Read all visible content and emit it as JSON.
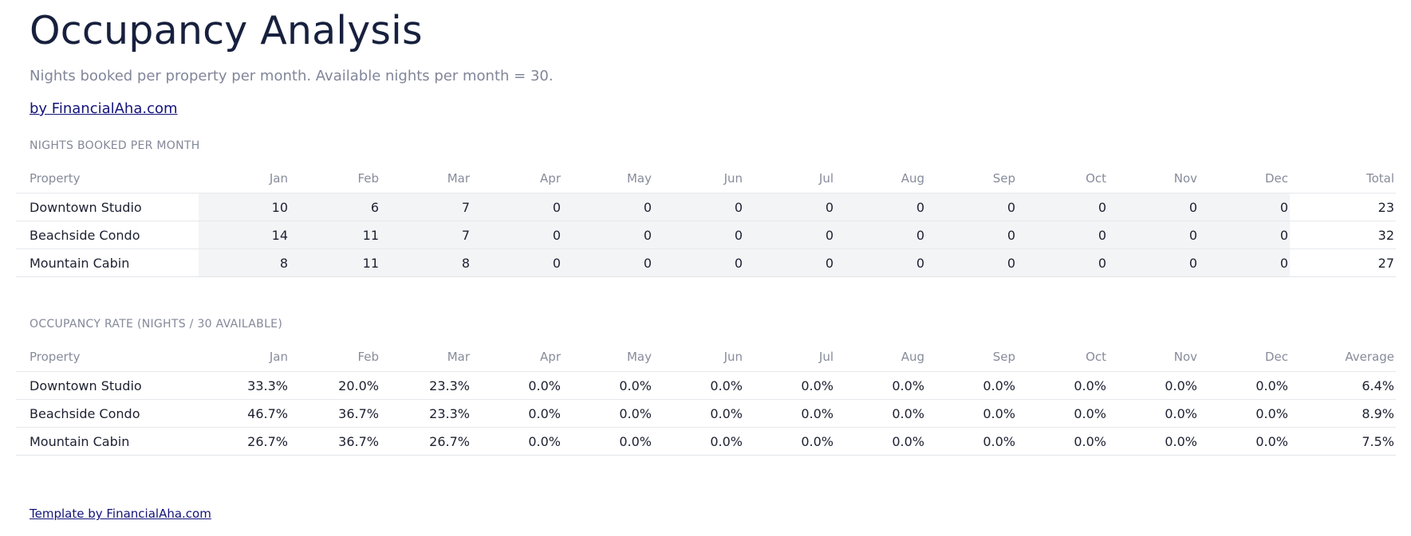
{
  "header": {
    "title": "Occupancy Analysis",
    "subtitle": "Nights booked per property per month. Available nights per month = 30.",
    "byline": "by FinancialAha.com"
  },
  "nights_table": {
    "label": "NIGHTS BOOKED PER MONTH",
    "columns": [
      "Property",
      "Jan",
      "Feb",
      "Mar",
      "Apr",
      "May",
      "Jun",
      "Jul",
      "Aug",
      "Sep",
      "Oct",
      "Nov",
      "Dec",
      "Total"
    ],
    "rows": [
      [
        "Downtown Studio",
        "10",
        "6",
        "7",
        "0",
        "0",
        "0",
        "0",
        "0",
        "0",
        "0",
        "0",
        "0",
        "23"
      ],
      [
        "Beachside Condo",
        "14",
        "11",
        "7",
        "0",
        "0",
        "0",
        "0",
        "0",
        "0",
        "0",
        "0",
        "0",
        "32"
      ],
      [
        "Mountain Cabin",
        "8",
        "11",
        "8",
        "0",
        "0",
        "0",
        "0",
        "0",
        "0",
        "0",
        "0",
        "0",
        "27"
      ]
    ]
  },
  "rate_table": {
    "label": "OCCUPANCY RATE (NIGHTS / 30 AVAILABLE)",
    "columns": [
      "Property",
      "Jan",
      "Feb",
      "Mar",
      "Apr",
      "May",
      "Jun",
      "Jul",
      "Aug",
      "Sep",
      "Oct",
      "Nov",
      "Dec",
      "Average"
    ],
    "rows": [
      [
        "Downtown Studio",
        "33.3%",
        "20.0%",
        "23.3%",
        "0.0%",
        "0.0%",
        "0.0%",
        "0.0%",
        "0.0%",
        "0.0%",
        "0.0%",
        "0.0%",
        "0.0%",
        "6.4%"
      ],
      [
        "Beachside Condo",
        "46.7%",
        "36.7%",
        "23.3%",
        "0.0%",
        "0.0%",
        "0.0%",
        "0.0%",
        "0.0%",
        "0.0%",
        "0.0%",
        "0.0%",
        "0.0%",
        "8.9%"
      ],
      [
        "Mountain Cabin",
        "26.7%",
        "36.7%",
        "26.7%",
        "0.0%",
        "0.0%",
        "0.0%",
        "0.0%",
        "0.0%",
        "0.0%",
        "0.0%",
        "0.0%",
        "0.0%",
        "7.5%"
      ]
    ]
  },
  "footer": {
    "link": "Template by FinancialAha.com"
  }
}
